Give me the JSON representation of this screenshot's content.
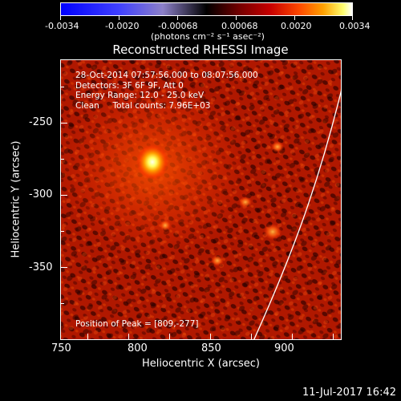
{
  "colorbar": {
    "ticks": [
      "-0.0034",
      "-0.0020",
      "-0.00068",
      "0.00068",
      "0.0020",
      "0.0034"
    ],
    "units": "(photons cm⁻² s⁻¹ asec⁻²)"
  },
  "plot": {
    "title": "Reconstructed RHESSI Image",
    "xlabel": "Heliocentric X (arcsec)",
    "ylabel": "Heliocentric Y (arcsec)",
    "xticks": [
      "750",
      "800",
      "850",
      "900"
    ],
    "yticks": [
      "-250",
      "-300",
      "-350"
    ],
    "info_lines": [
      "28-Oct-2014 07:57:56.000 to 08:07:56.000",
      "Detectors: 3F 6F 9F, Att 0",
      "Energy Range: 12.0 - 25.0 keV",
      "Clean     Total counts: 7.96E+03"
    ],
    "peak_label": "Position of Peak = [809,-277]"
  },
  "footer": {
    "timestamp": "11-Jul-2017 16:42"
  },
  "colors": {
    "background": "#000000",
    "foreground": "#ffffff"
  }
}
